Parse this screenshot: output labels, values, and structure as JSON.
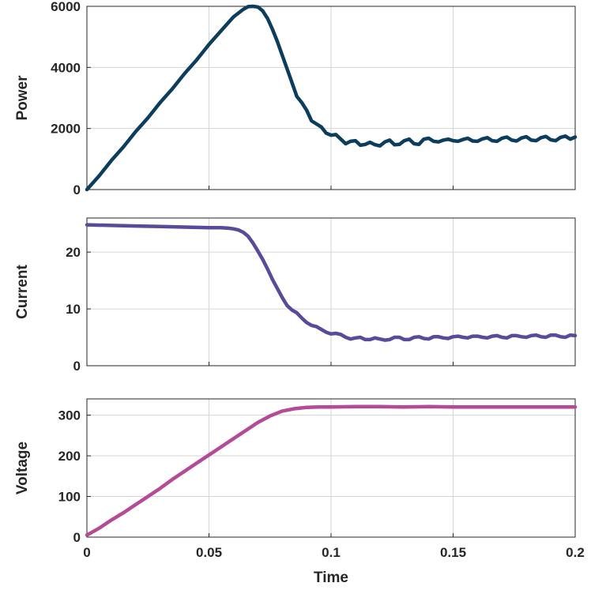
{
  "chart_data": [
    {
      "type": "line",
      "title": "",
      "xlabel": "",
      "ylabel": "Power",
      "xlim": [
        0,
        0.2
      ],
      "ylim": [
        0,
        6000
      ],
      "yticks": [
        0,
        2000,
        4000,
        6000
      ],
      "xticks": [
        0,
        0.05,
        0.1,
        0.15,
        0.2
      ],
      "show_xtick_labels": false,
      "grid": true,
      "color": "#0c3d5c",
      "series": [
        {
          "x": [
            0,
            0.005,
            0.01,
            0.015,
            0.02,
            0.025,
            0.03,
            0.035,
            0.04,
            0.045,
            0.05,
            0.055,
            0.06,
            0.064,
            0.066,
            0.068,
            0.07,
            0.072,
            0.074,
            0.076,
            0.078,
            0.08,
            0.082,
            0.084,
            0.086,
            0.088,
            0.09,
            0.092,
            0.094,
            0.096,
            0.098,
            0.1,
            0.102,
            0.104,
            0.106,
            0.108,
            0.11,
            0.112,
            0.114,
            0.116,
            0.118,
            0.12,
            0.122,
            0.124,
            0.126,
            0.128,
            0.13,
            0.132,
            0.134,
            0.136,
            0.138,
            0.14,
            0.142,
            0.144,
            0.146,
            0.148,
            0.15,
            0.152,
            0.154,
            0.156,
            0.158,
            0.16,
            0.162,
            0.164,
            0.166,
            0.168,
            0.17,
            0.172,
            0.174,
            0.176,
            0.178,
            0.18,
            0.182,
            0.184,
            0.186,
            0.188,
            0.19,
            0.192,
            0.194,
            0.196,
            0.198,
            0.2
          ],
          "y": [
            0,
            450,
            950,
            1400,
            1900,
            2350,
            2850,
            3300,
            3800,
            4250,
            4750,
            5200,
            5650,
            5900,
            5990,
            6000,
            5980,
            5850,
            5600,
            5250,
            4850,
            4400,
            3950,
            3500,
            3050,
            2850,
            2600,
            2250,
            2150,
            2050,
            1850,
            1780,
            1800,
            1650,
            1500,
            1580,
            1600,
            1450,
            1480,
            1550,
            1470,
            1430,
            1560,
            1620,
            1470,
            1480,
            1600,
            1650,
            1500,
            1480,
            1650,
            1680,
            1580,
            1560,
            1620,
            1650,
            1600,
            1580,
            1640,
            1680,
            1590,
            1580,
            1660,
            1700,
            1600,
            1580,
            1680,
            1720,
            1620,
            1590,
            1690,
            1730,
            1620,
            1600,
            1700,
            1740,
            1630,
            1600,
            1710,
            1750,
            1650,
            1720
          ]
        }
      ]
    },
    {
      "type": "line",
      "title": "",
      "xlabel": "",
      "ylabel": "Current",
      "xlim": [
        0,
        0.2
      ],
      "ylim": [
        0,
        26
      ],
      "yticks": [
        0,
        10,
        20
      ],
      "xticks": [
        0,
        0.05,
        0.1,
        0.15,
        0.2
      ],
      "show_xtick_labels": false,
      "grid": true,
      "color": "#5a4a9a",
      "series": [
        {
          "x": [
            0,
            0.01,
            0.02,
            0.03,
            0.04,
            0.05,
            0.055,
            0.058,
            0.06,
            0.062,
            0.064,
            0.066,
            0.068,
            0.07,
            0.072,
            0.074,
            0.076,
            0.078,
            0.08,
            0.082,
            0.084,
            0.086,
            0.088,
            0.09,
            0.092,
            0.094,
            0.096,
            0.098,
            0.1,
            0.102,
            0.104,
            0.106,
            0.108,
            0.11,
            0.112,
            0.114,
            0.116,
            0.118,
            0.12,
            0.122,
            0.124,
            0.126,
            0.128,
            0.13,
            0.132,
            0.134,
            0.136,
            0.138,
            0.14,
            0.142,
            0.144,
            0.146,
            0.148,
            0.15,
            0.152,
            0.154,
            0.156,
            0.158,
            0.16,
            0.162,
            0.164,
            0.166,
            0.168,
            0.17,
            0.172,
            0.174,
            0.176,
            0.178,
            0.18,
            0.182,
            0.184,
            0.186,
            0.188,
            0.19,
            0.192,
            0.194,
            0.196,
            0.198,
            0.2
          ],
          "y": [
            24.8,
            24.7,
            24.6,
            24.5,
            24.4,
            24.3,
            24.3,
            24.2,
            24.1,
            23.9,
            23.5,
            22.8,
            21.6,
            20.2,
            18.7,
            17.0,
            15.2,
            13.6,
            12.0,
            10.6,
            9.8,
            9.3,
            8.4,
            7.6,
            7.1,
            6.9,
            6.4,
            5.9,
            5.6,
            5.7,
            5.5,
            5.0,
            4.7,
            4.9,
            5.0,
            4.6,
            4.6,
            4.9,
            4.7,
            4.5,
            4.6,
            5.0,
            5.0,
            4.6,
            4.6,
            5.0,
            5.1,
            4.8,
            4.7,
            5.1,
            5.1,
            4.9,
            4.8,
            5.1,
            5.2,
            5.0,
            4.9,
            5.2,
            5.2,
            5.0,
            4.9,
            5.2,
            5.3,
            5.0,
            4.9,
            5.3,
            5.3,
            5.1,
            5.0,
            5.3,
            5.4,
            5.1,
            5.0,
            5.4,
            5.4,
            5.1,
            5.0,
            5.4,
            5.3
          ]
        }
      ]
    },
    {
      "type": "line",
      "title": "",
      "xlabel": "Time",
      "ylabel": "Voltage",
      "xlim": [
        0,
        0.2
      ],
      "ylim": [
        0,
        340
      ],
      "yticks": [
        0,
        100,
        200,
        300
      ],
      "xticks": [
        0,
        0.05,
        0.1,
        0.15,
        0.2
      ],
      "xtick_labels": [
        "0",
        "0.05",
        "0.1",
        "0.15",
        "0.2"
      ],
      "show_xtick_labels": true,
      "grid": true,
      "color": "#b54a96",
      "series": [
        {
          "x": [
            0,
            0.005,
            0.01,
            0.015,
            0.02,
            0.025,
            0.03,
            0.035,
            0.04,
            0.045,
            0.05,
            0.055,
            0.06,
            0.065,
            0.07,
            0.075,
            0.08,
            0.085,
            0.09,
            0.095,
            0.1,
            0.11,
            0.12,
            0.13,
            0.14,
            0.15,
            0.16,
            0.17,
            0.18,
            0.19,
            0.2
          ],
          "y": [
            5,
            22,
            42,
            60,
            80,
            100,
            120,
            142,
            162,
            182,
            202,
            222,
            242,
            262,
            282,
            298,
            310,
            316,
            319,
            320,
            320,
            321,
            321,
            320,
            321,
            320,
            320,
            320,
            320,
            320,
            320
          ]
        }
      ]
    }
  ]
}
